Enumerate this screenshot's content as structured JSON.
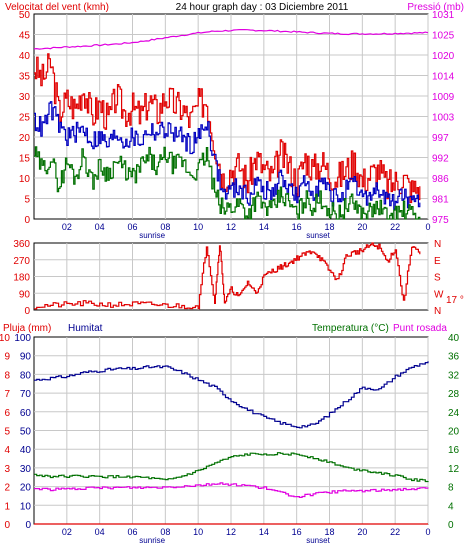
{
  "header": {
    "title": "24 hour graph day : 03 Diciembre 2011",
    "wind_label": "Velocitat del vent (kmh)",
    "pressure_label": "Pressió (mb)"
  },
  "colors": {
    "frame": "#000000",
    "grid": "#c8c8c8",
    "gust": "#e00000",
    "wind_avg": "#0000c0",
    "wind_min": "#007000",
    "pressure": "#e000e0",
    "direction": "#e00000",
    "rain": "#e00000",
    "humidity": "#000090",
    "temperature": "#007000",
    "dewpoint": "#e000e0",
    "label_red": "#e00000",
    "label_blue": "#000090",
    "label_green": "#007000"
  },
  "x_axis": {
    "hour_ticks": [
      "02",
      "04",
      "06",
      "08",
      "10",
      "12",
      "14",
      "16",
      "18",
      "20",
      "22",
      "0"
    ],
    "sunrise_label": "sunrise",
    "sunset_label": "sunset",
    "sunrise_hour": 7.2,
    "sunset_hour": 17.3
  },
  "chart_data": [
    {
      "type": "line",
      "title": "24 hour graph day : 03 Diciembre 2011",
      "xlim": [
        0,
        24
      ],
      "y_left_label": "Velocitat del vent (kmh)",
      "y_left_ticks": [
        "0",
        "5",
        "10",
        "15",
        "20",
        "25",
        "30",
        "35",
        "40",
        "45",
        "50"
      ],
      "y_left_lim": [
        0,
        50
      ],
      "y_right_label": "Pressió (mb)",
      "y_right_ticks": [
        "975",
        "981",
        "986",
        "992",
        "997",
        "1003",
        "1009",
        "1014",
        "1020",
        "1025",
        "1031"
      ],
      "y_right_lim": [
        975,
        1031
      ],
      "series": [
        {
          "key": "gust",
          "x": [
            0,
            0.5,
            1,
            1.5,
            2,
            2.5,
            3,
            3.5,
            4,
            4.5,
            5,
            5.5,
            6,
            6.5,
            7,
            7.5,
            8,
            8.5,
            9,
            9.5,
            10,
            10.5,
            11,
            11.5,
            12,
            12.5,
            13,
            13.5,
            14,
            14.5,
            15,
            15.5,
            16,
            16.5,
            17,
            17.5,
            18,
            18.5,
            19,
            19.5,
            20,
            20.5,
            21,
            21.5,
            22,
            22.5,
            23,
            23.5
          ],
          "values": [
            37,
            34,
            38,
            26,
            29,
            27,
            32,
            25,
            28,
            24,
            30,
            26,
            27,
            25,
            29,
            26,
            30,
            28,
            27,
            24,
            28,
            29,
            18,
            10,
            12,
            13,
            9,
            15,
            12,
            10,
            16,
            13,
            9,
            15,
            12,
            14,
            11,
            10,
            12,
            14,
            9,
            11,
            12,
            8,
            9,
            10,
            7,
            8
          ]
        },
        {
          "key": "wind_avg",
          "x": [
            0,
            0.5,
            1,
            1.5,
            2,
            2.5,
            3,
            3.5,
            4,
            4.5,
            5,
            5.5,
            6,
            6.5,
            7,
            7.5,
            8,
            8.5,
            9,
            9.5,
            10,
            10.5,
            11,
            11.5,
            12,
            12.5,
            13,
            13.5,
            14,
            14.5,
            15,
            15.5,
            16,
            16.5,
            17,
            17.5,
            18,
            18.5,
            19,
            19.5,
            20,
            20.5,
            21,
            21.5,
            22,
            22.5,
            23,
            23.5
          ],
          "values": [
            24,
            22,
            27,
            23,
            20,
            21,
            22,
            19,
            20,
            18,
            21,
            19,
            20,
            19,
            22,
            21,
            22,
            21,
            20,
            18,
            20,
            24,
            14,
            6,
            7,
            8,
            5,
            9,
            7,
            6,
            10,
            8,
            5,
            9,
            7,
            9,
            6,
            5,
            7,
            8,
            5,
            6,
            7,
            4,
            5,
            6,
            3,
            4
          ]
        },
        {
          "key": "wind_min",
          "x": [
            0,
            0.5,
            1,
            1.5,
            2,
            2.5,
            3,
            3.5,
            4,
            4.5,
            5,
            5.5,
            6,
            6.5,
            7,
            7.5,
            8,
            8.5,
            9,
            9.5,
            10,
            10.5,
            11,
            11.5,
            12,
            12.5,
            13,
            13.5,
            14,
            14.5,
            15,
            15.5,
            16,
            16.5,
            17,
            17.5,
            18,
            18.5,
            19,
            19.5,
            20,
            20.5,
            21,
            21.5,
            22,
            22.5,
            23,
            23.5
          ],
          "values": [
            16,
            12,
            15,
            8,
            14,
            10,
            16,
            9,
            13,
            11,
            14,
            12,
            10,
            13,
            15,
            12,
            16,
            13,
            14,
            11,
            12,
            16,
            6,
            2,
            3,
            4,
            1,
            5,
            3,
            2,
            6,
            4,
            1,
            5,
            3,
            5,
            2,
            1,
            3,
            4,
            1,
            2,
            3,
            0,
            1,
            2,
            1,
            0
          ]
        },
        {
          "key": "pressure",
          "axis": "right",
          "x": [
            0,
            1,
            2,
            3,
            4,
            5,
            6,
            7,
            8,
            9,
            10,
            11,
            12,
            13,
            14,
            15,
            16,
            17,
            18,
            19,
            20,
            21,
            22,
            23,
            24
          ],
          "values": [
            1021.5,
            1021.7,
            1022,
            1022.2,
            1022.5,
            1022.8,
            1023.2,
            1023.8,
            1024.5,
            1025.2,
            1025.8,
            1026.3,
            1026.5,
            1026.6,
            1026.5,
            1026.3,
            1026.1,
            1025.9,
            1025.7,
            1025.6,
            1025.6,
            1025.6,
            1025.7,
            1025.8,
            1025.9
          ]
        }
      ]
    },
    {
      "type": "line",
      "y_left_ticks": [
        "0",
        "90",
        "180",
        "270",
        "360"
      ],
      "y_left_lim": [
        0,
        360
      ],
      "y_right_ticks": [
        "N",
        "W",
        "S",
        "E",
        "N"
      ],
      "temp_readout": "17 °",
      "series": [
        {
          "key": "direction",
          "x": [
            0,
            1,
            2,
            3,
            4,
            5,
            6,
            7,
            8,
            9,
            10,
            10.5,
            11,
            11.3,
            11.6,
            12,
            12.5,
            13,
            13.5,
            14,
            14.5,
            15,
            15.5,
            16,
            16.5,
            17,
            17.5,
            18,
            18.5,
            19,
            19.5,
            20,
            20.5,
            21,
            21.5,
            22,
            22.5,
            23,
            23.5
          ],
          "values": [
            20,
            25,
            30,
            35,
            30,
            28,
            32,
            30,
            25,
            20,
            22,
            350,
            40,
            360,
            40,
            110,
            70,
            150,
            90,
            180,
            210,
            230,
            250,
            280,
            300,
            320,
            270,
            210,
            160,
            290,
            310,
            320,
            350,
            340,
            260,
            330,
            40,
            350,
            300
          ]
        }
      ]
    },
    {
      "type": "line",
      "title": "",
      "xlim": [
        0,
        24
      ],
      "y_left_label": "Pluja (mm)",
      "y_left_ticks": [
        "0",
        "1",
        "2",
        "3",
        "4",
        "5",
        "6",
        "7",
        "8",
        "9",
        "10"
      ],
      "y_left_lim": [
        0,
        10
      ],
      "y_inner_label": "Humitat",
      "y_inner_ticks": [
        "0",
        "10",
        "20",
        "30",
        "40",
        "50",
        "60",
        "70",
        "80",
        "90",
        "100"
      ],
      "y_inner_lim": [
        0,
        100
      ],
      "y_right_label": "Temperatura (°C)",
      "y_right_label2": "Punt rosada",
      "y_right_ticks": [
        "0",
        "4",
        "8",
        "12",
        "16",
        "20",
        "24",
        "28",
        "32",
        "36",
        "40"
      ],
      "y_right_lim": [
        0,
        40
      ],
      "series": [
        {
          "key": "rain",
          "x": [
            0,
            24
          ],
          "values": [
            0,
            0
          ]
        },
        {
          "key": "humidity",
          "axis": "inner",
          "x": [
            0,
            1,
            2,
            3,
            4,
            5,
            6,
            7,
            8,
            9,
            10,
            11,
            12,
            13,
            14,
            15,
            16,
            17,
            18,
            19,
            20,
            21,
            22,
            23,
            24
          ],
          "values": [
            77,
            78,
            79,
            81,
            82,
            83,
            83,
            84,
            84,
            81,
            77,
            73,
            66,
            61,
            57,
            54,
            52,
            53,
            59,
            66,
            73,
            72,
            79,
            84,
            87
          ]
        },
        {
          "key": "temperature",
          "axis": "right",
          "x": [
            0,
            1,
            2,
            3,
            4,
            5,
            6,
            7,
            8,
            9,
            10,
            11,
            12,
            13,
            14,
            15,
            16,
            17,
            18,
            19,
            20,
            21,
            22,
            23,
            24
          ],
          "values": [
            10.5,
            10.2,
            10.2,
            10.2,
            10.1,
            10.1,
            10.1,
            9.8,
            9.3,
            10.2,
            11.4,
            13,
            14.3,
            14.9,
            15,
            15,
            14.9,
            14.2,
            13.2,
            12,
            11.5,
            11,
            10.3,
            9.5,
            9.2
          ]
        },
        {
          "key": "dewpoint",
          "axis": "right",
          "x": [
            0,
            1,
            2,
            3,
            4,
            5,
            6,
            7,
            8,
            9,
            10,
            11,
            12,
            13,
            14,
            15,
            16,
            17,
            18,
            19,
            20,
            21,
            22,
            23,
            24
          ],
          "values": [
            7.6,
            7.4,
            7.5,
            7.6,
            7.7,
            7.8,
            7.8,
            7.8,
            7.9,
            8.1,
            8.3,
            8.6,
            8.5,
            8.2,
            7.7,
            6.7,
            5.8,
            6.4,
            6.8,
            7.1,
            7.1,
            7.2,
            7.4,
            7.5,
            7.6
          ]
        }
      ]
    }
  ]
}
